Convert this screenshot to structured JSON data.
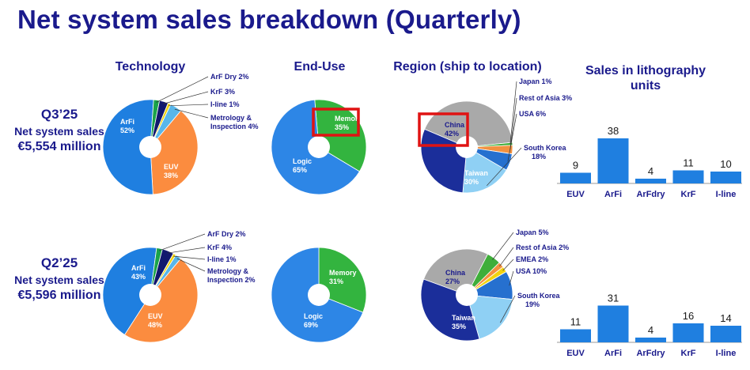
{
  "title": "Net system sales breakdown (Quarterly)",
  "columns": {
    "technology": "Technology",
    "end_use": "End-Use",
    "region": "Region (ship to location)",
    "litho_line1": "Sales in lithography",
    "litho_line2": "units"
  },
  "rows": [
    {
      "quarter": "Q3’25",
      "label": "Net system sales",
      "value": "€5,554 million"
    },
    {
      "quarter": "Q2’25",
      "label": "Net system sales",
      "value": "€5,596 million"
    }
  ],
  "colors": {
    "title": "#1a1a8c",
    "ArFi": "#1f7fe0",
    "EUV": "#fb8c3f",
    "ArF Dry": "#1aa34a",
    "KrF": "#11186e",
    "I-line": "#f2d30f",
    "Metrology": "#58b6ea",
    "Logic": "#2d86e6",
    "Memory": "#33b43f",
    "China": "#a9a9a9",
    "Japan": "#3fae3a",
    "Rest of Asia": "#f2913f",
    "EMEA": "#f2d30f",
    "USA": "#2670cf",
    "South Korea": "#8fd0f4",
    "Taiwan": "#1b2e9a",
    "bar": "#1f7fe0",
    "highlight": "#e01313"
  },
  "chart_data": [
    {
      "type": "pie",
      "id": "technology-q3",
      "period": "Q3’25",
      "panel": "Technology",
      "slices": [
        {
          "name": "ArFi",
          "label": "ArFi",
          "value": 52
        },
        {
          "name": "EUV",
          "label": "EUV",
          "value": 38
        },
        {
          "name": "Metrology",
          "label": "Metrology & Inspection 4%",
          "value": 4
        },
        {
          "name": "I-line",
          "label": "I-line 1%",
          "value": 1
        },
        {
          "name": "KrF",
          "label": "KrF 3%",
          "value": 3
        },
        {
          "name": "ArF Dry",
          "label": "ArF Dry 2%",
          "value": 2
        }
      ]
    },
    {
      "type": "pie",
      "id": "enduse-q3",
      "period": "Q3’25",
      "panel": "End-Use",
      "slices": [
        {
          "name": "Logic",
          "label": "Logic",
          "value": 65
        },
        {
          "name": "Memory",
          "label": "Memory",
          "value": 35,
          "highlighted": true
        }
      ]
    },
    {
      "type": "pie",
      "id": "region-q3",
      "period": "Q3’25",
      "panel": "Region (ship to location)",
      "slices": [
        {
          "name": "China",
          "label": "China",
          "value": 42,
          "highlighted": true
        },
        {
          "name": "Taiwan",
          "label": "Taiwan",
          "value": 30
        },
        {
          "name": "South Korea",
          "label": "South Korea 18%",
          "value": 18
        },
        {
          "name": "USA",
          "label": "USA 6%",
          "value": 6
        },
        {
          "name": "Rest of Asia",
          "label": "Rest of Asia 3%",
          "value": 3
        },
        {
          "name": "Japan",
          "label": "Japan 1%",
          "value": 1
        }
      ]
    },
    {
      "type": "bar",
      "id": "litho-q3",
      "period": "Q3’25",
      "panel": "Sales in lithography units",
      "categories": [
        "EUV",
        "ArFi",
        "ArFdry",
        "KrF",
        "I-line"
      ],
      "values": [
        9,
        38,
        4,
        11,
        10
      ]
    },
    {
      "type": "pie",
      "id": "technology-q2",
      "period": "Q2’25",
      "panel": "Technology",
      "slices": [
        {
          "name": "ArFi",
          "label": "ArFi",
          "value": 43
        },
        {
          "name": "EUV",
          "label": "EUV",
          "value": 48
        },
        {
          "name": "Metrology",
          "label": "Metrology & Inspection 2%",
          "value": 2
        },
        {
          "name": "I-line",
          "label": "I-line 1%",
          "value": 1
        },
        {
          "name": "KrF",
          "label": "KrF 4%",
          "value": 4
        },
        {
          "name": "ArF Dry",
          "label": "ArF Dry 2%",
          "value": 2
        }
      ]
    },
    {
      "type": "pie",
      "id": "enduse-q2",
      "period": "Q2’25",
      "panel": "End-Use",
      "slices": [
        {
          "name": "Logic",
          "label": "Logic",
          "value": 69
        },
        {
          "name": "Memory",
          "label": "Memory",
          "value": 31
        }
      ]
    },
    {
      "type": "pie",
      "id": "region-q2",
      "period": "Q2’25",
      "panel": "Region (ship to location)",
      "slices": [
        {
          "name": "China",
          "label": "China",
          "value": 27
        },
        {
          "name": "Taiwan",
          "label": "Taiwan",
          "value": 35
        },
        {
          "name": "South Korea",
          "label": "South Korea 19%",
          "value": 19
        },
        {
          "name": "USA",
          "label": "USA 10%",
          "value": 10
        },
        {
          "name": "EMEA",
          "label": "EMEA 2%",
          "value": 2
        },
        {
          "name": "Rest of Asia",
          "label": "Rest of Asia 2%",
          "value": 2
        },
        {
          "name": "Japan",
          "label": "Japan 5%",
          "value": 5
        }
      ]
    },
    {
      "type": "bar",
      "id": "litho-q2",
      "period": "Q2’25",
      "panel": "Sales in lithography units",
      "categories": [
        "EUV",
        "ArFi",
        "ArFdry",
        "KrF",
        "I-line"
      ],
      "values": [
        11,
        31,
        4,
        16,
        14
      ]
    }
  ]
}
